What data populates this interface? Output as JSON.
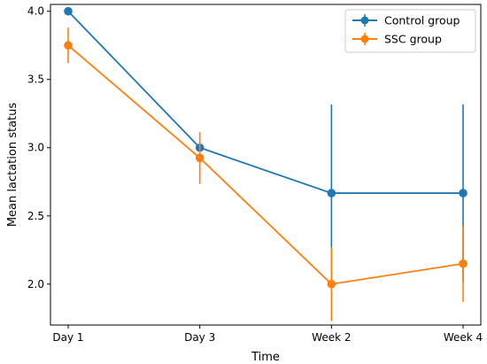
{
  "chart_data": {
    "type": "line",
    "xlabel": "Time",
    "ylabel": "Mean lactation status",
    "categories": [
      "Day 1",
      "Day 3",
      "Week 2",
      "Week 4"
    ],
    "ylim": [
      1.7,
      4.05
    ],
    "yticks": [
      2.0,
      2.5,
      3.0,
      3.5,
      4.0
    ],
    "ytick_labels": [
      "2.0",
      "2.5",
      "3.0",
      "3.5",
      "4.0"
    ],
    "grid": false,
    "legend_position": "top-right",
    "series": [
      {
        "name": "Control group",
        "color": "#1f77b4",
        "values": [
          4.0,
          3.0,
          2.667,
          2.667
        ],
        "errors": [
          0.0,
          0.0,
          0.65,
          0.65
        ]
      },
      {
        "name": "SSC group",
        "color": "#ff7f0e",
        "values": [
          3.75,
          2.925,
          2.0,
          2.15
        ],
        "errors": [
          0.13,
          0.19,
          0.27,
          0.28
        ]
      }
    ]
  }
}
